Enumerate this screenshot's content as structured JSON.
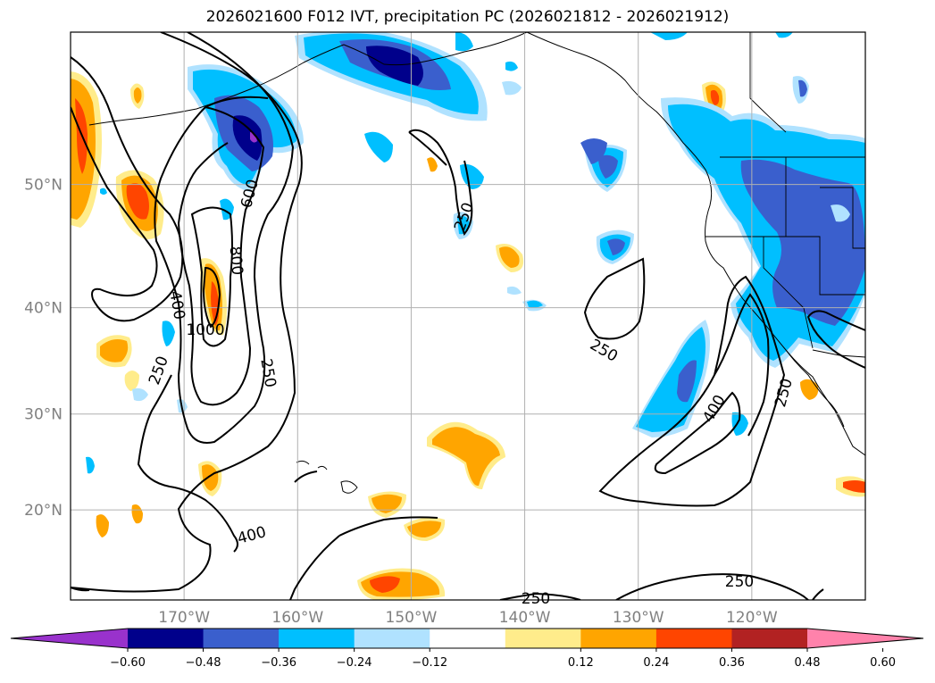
{
  "title": "2026021600 F012 IVT, precipitation PC (2026021812 - 2026021912)",
  "map": {
    "lat_labels": [
      "50°N",
      "40°N",
      "30°N",
      "20°N"
    ],
    "lat_values": [
      50,
      40,
      30,
      20
    ],
    "lon_labels": [
      "170°W",
      "160°W",
      "150°W",
      "140°W",
      "130°W",
      "120°W"
    ],
    "lon_values": [
      -170,
      -160,
      -150,
      -140,
      -130,
      -120
    ],
    "extent": {
      "lon": [
        -180,
        -110
      ],
      "lat": [
        10,
        60
      ]
    },
    "gridlines": true,
    "ivt_contour_levels": [
      250,
      400,
      600,
      800,
      1000
    ],
    "contour_labels": [
      "250",
      "250",
      "250",
      "250",
      "250",
      "250",
      "250",
      "400",
      "400",
      "400",
      "600",
      "800",
      "1000"
    ],
    "colors": {
      "contour": "#000000",
      "coastline": "#000000",
      "grid": "#b0b0b0"
    }
  },
  "colorbar": {
    "ticks": [
      "−0.60",
      "−0.48",
      "−0.36",
      "−0.24",
      "−0.12",
      "0.12",
      "0.24",
      "0.36",
      "0.48",
      "0.60"
    ],
    "colors": [
      "#9932cc",
      "#00008b",
      "#3a5fcd",
      "#00bfff",
      "#b0e2ff",
      "#ffffff",
      "#ffec8b",
      "#ffa500",
      "#ff4500",
      "#b22222",
      "#ff82ab"
    ]
  }
}
